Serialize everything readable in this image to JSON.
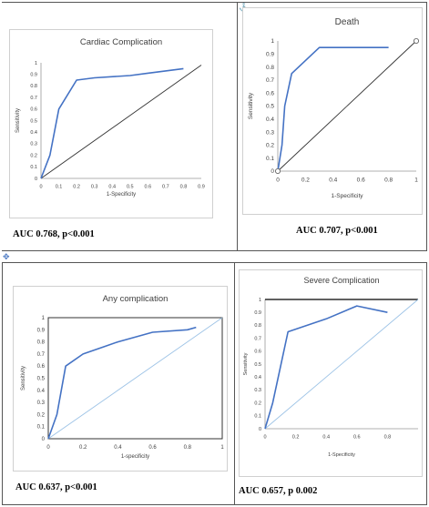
{
  "markers": {
    "anchor": "⚓",
    "move": "✥"
  },
  "chart_data": [
    {
      "id": "cardiac",
      "type": "line",
      "title": "Cardiac Complication",
      "xlabel": "1-Specificity",
      "ylabel": "Sensitivity",
      "xlim": [
        0,
        0.9
      ],
      "ylim": [
        0,
        1
      ],
      "xticks": [
        "0",
        "0.1",
        "0.2",
        "0.3",
        "0.4",
        "0.5",
        "0.6",
        "0.7",
        "0.8",
        "0.9"
      ],
      "yticks": [
        "0",
        "0.1",
        "0.2",
        "0.3",
        "0.4",
        "0.5",
        "0.6",
        "0.7",
        "0.8",
        "0.9",
        "1"
      ],
      "series": [
        {
          "x": [
            0,
            0.05,
            0.1,
            0.2,
            0.3,
            0.5,
            0.6,
            0.8
          ],
          "y": [
            0,
            0.2,
            0.6,
            0.85,
            0.87,
            0.89,
            0.91,
            0.95
          ]
        }
      ],
      "reference_line": {
        "x": [
          0,
          0.9
        ],
        "y": [
          0,
          0.98
        ]
      },
      "caption": "AUC 0.768, p<0.001",
      "colors": {
        "curve": "#4472c4",
        "reference": "#333333"
      }
    },
    {
      "id": "death",
      "type": "line",
      "title": "Death",
      "xlabel": "1-Specificity",
      "ylabel": "Sensitivity",
      "xlim": [
        0,
        1
      ],
      "ylim": [
        0,
        1
      ],
      "xticks": [
        "0",
        "0.2",
        "0.4",
        "0.6",
        "0.8",
        "1"
      ],
      "yticks": [
        "0",
        "0.1",
        "0.2",
        "0.3",
        "0.4",
        "0.5",
        "0.6",
        "0.7",
        "0.8",
        "0.9",
        "1"
      ],
      "series": [
        {
          "x": [
            0,
            0.03,
            0.05,
            0.1,
            0.3,
            0.8
          ],
          "y": [
            0,
            0.2,
            0.5,
            0.75,
            0.95,
            0.95
          ]
        }
      ],
      "reference_line": {
        "x": [
          0,
          1
        ],
        "y": [
          0,
          1
        ]
      },
      "endpoints": [
        [
          0,
          0
        ],
        [
          1,
          1
        ]
      ],
      "caption": "AUC 0.707, p<0.001",
      "colors": {
        "curve": "#4472c4",
        "reference": "#333333"
      }
    },
    {
      "id": "any",
      "type": "line",
      "title": "Any complication",
      "xlabel": "1-specificity",
      "ylabel": "Sensitivity",
      "xlim": [
        0,
        1
      ],
      "ylim": [
        0,
        1
      ],
      "xticks": [
        "0",
        "0.2",
        "0.4",
        "0.6",
        "0.8",
        "1"
      ],
      "yticks": [
        "0",
        "0.1",
        "0.2",
        "0.3",
        "0.4",
        "0.5",
        "0.6",
        "0.7",
        "0.8",
        "0.9",
        "1"
      ],
      "series": [
        {
          "x": [
            0,
            0.05,
            0.1,
            0.2,
            0.4,
            0.6,
            0.8,
            0.85
          ],
          "y": [
            0,
            0.2,
            0.6,
            0.7,
            0.8,
            0.88,
            0.9,
            0.92
          ]
        }
      ],
      "reference_line": {
        "x": [
          0,
          1
        ],
        "y": [
          0,
          1
        ]
      },
      "caption": "AUC 0.637, p<0.001",
      "colors": {
        "curve": "#4472c4",
        "reference": "#9dc3e6"
      }
    },
    {
      "id": "severe",
      "type": "line",
      "title": "Severe Complication",
      "xlabel": "1-Specificity",
      "ylabel": "Sensitivity",
      "xlim": [
        0,
        1
      ],
      "ylim": [
        0,
        1
      ],
      "xticks": [
        "0",
        "0.2",
        "0.4",
        "0.6",
        "0.8"
      ],
      "yticks": [
        "0",
        "0.1",
        "0.2",
        "0.3",
        "0.4",
        "0.5",
        "0.6",
        "0.7",
        "0.8",
        "0.9",
        "1"
      ],
      "series": [
        {
          "x": [
            0,
            0.05,
            0.15,
            0.4,
            0.6,
            0.8
          ],
          "y": [
            0,
            0.2,
            0.75,
            0.85,
            0.95,
            0.9
          ]
        }
      ],
      "reference_line": {
        "x": [
          0,
          1
        ],
        "y": [
          0,
          1
        ]
      },
      "caption": "AUC 0.657, p 0.002",
      "colors": {
        "curve": "#4472c4",
        "reference": "#9dc3e6"
      }
    }
  ]
}
